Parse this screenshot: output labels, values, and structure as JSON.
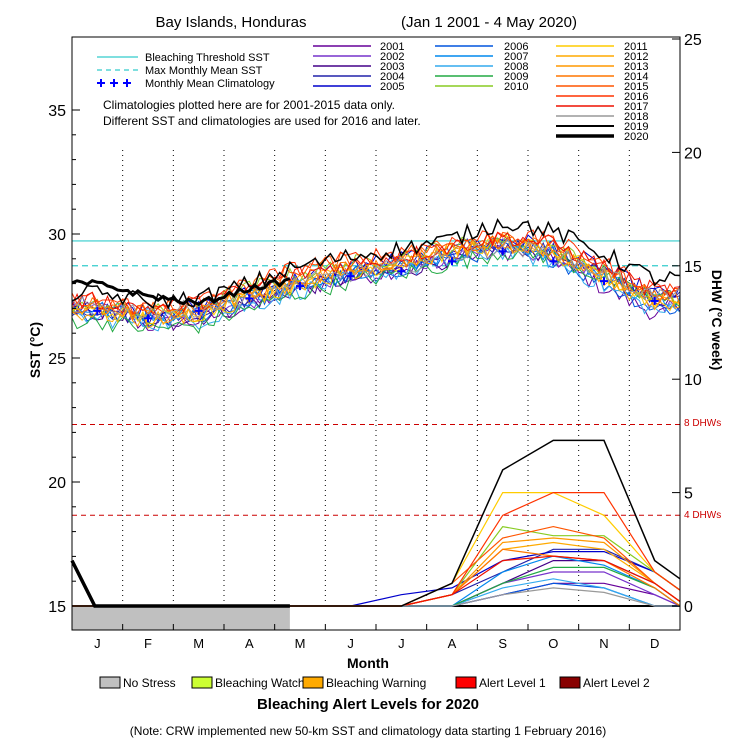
{
  "chart_data": {
    "type": "line",
    "title": "Bay Islands, Honduras",
    "subtitle": "(Jan 1 2001 - 4 May 2020)",
    "xlabel": "Month",
    "ylabel_left": "SST (°C)",
    "ylabel_right": "DHW (°C week)",
    "x_months": [
      "J",
      "F",
      "M",
      "A",
      "M",
      "J",
      "J",
      "A",
      "S",
      "O",
      "N",
      "D"
    ],
    "sst_ylim": [
      15,
      39
    ],
    "sst_ticks": [
      "15",
      "20",
      "25",
      "30",
      "35"
    ],
    "dhw_ylim": [
      0,
      25
    ],
    "dhw_ticks": [
      "0",
      "5",
      "10",
      "15",
      "20",
      "25"
    ],
    "bleaching_threshold_sst": 29.72,
    "max_monthly_mean_sst": 28.72,
    "dhw_thresholds": [
      {
        "value": 8,
        "label": "8 DHWs",
        "color": "#cc0000"
      },
      {
        "value": 4,
        "label": "4 DHWs",
        "color": "#cc0000"
      }
    ],
    "reference_legend": [
      {
        "label": "Bleaching Threshold SST",
        "color": "#33cccc",
        "style": "solid"
      },
      {
        "label": "Max Monthly Mean SST",
        "color": "#33cccc",
        "style": "dashed"
      },
      {
        "label": "Monthly Mean Climatology",
        "color": "#0000ff",
        "style": "plus"
      }
    ],
    "notes": [
      "Climatologies plotted here are for 2001-2015 data only.",
      "Different SST and climatologies are used for 2016 and later."
    ],
    "monthly_mean_climatology": [
      26.9,
      26.6,
      26.9,
      27.4,
      27.9,
      28.3,
      28.5,
      28.9,
      29.3,
      28.9,
      28.1,
      27.3
    ],
    "series": [
      {
        "name": "2001",
        "color": "#660099",
        "sst": [
          26.9,
          26.3,
          26.5,
          27.1,
          27.8,
          28.2,
          28.6,
          29.0,
          29.3,
          29.0,
          27.8,
          26.8
        ],
        "dhw": [
          0,
          0,
          0,
          0,
          0,
          0,
          0,
          0,
          0.5,
          1.0,
          1.0,
          0.5
        ]
      },
      {
        "name": "2002",
        "color": "#7733cc",
        "sst": [
          27.1,
          26.7,
          26.8,
          27.3,
          27.9,
          28.3,
          28.6,
          29.1,
          29.5,
          29.1,
          28.2,
          27.2
        ],
        "dhw": [
          0,
          0,
          0,
          0,
          0,
          0,
          0,
          0,
          1.0,
          1.5,
          1.5,
          0.5
        ]
      },
      {
        "name": "2003",
        "color": "#440088",
        "sst": [
          26.8,
          26.5,
          26.6,
          27.2,
          27.8,
          28.2,
          28.5,
          29.0,
          29.4,
          29.2,
          28.3,
          27.4
        ],
        "dhw": [
          0,
          0,
          0,
          0,
          0,
          0,
          0,
          0,
          1.0,
          2.0,
          2.0,
          1.0
        ]
      },
      {
        "name": "2004",
        "color": "#2222aa",
        "sst": [
          27.0,
          26.6,
          26.8,
          27.4,
          28.0,
          28.4,
          28.7,
          29.2,
          29.6,
          29.3,
          28.4,
          27.5
        ],
        "dhw": [
          0,
          0,
          0,
          0,
          0,
          0,
          0,
          0.5,
          1.5,
          2.5,
          2.5,
          1.5
        ]
      },
      {
        "name": "2005",
        "color": "#0000cc",
        "sst": [
          27.2,
          26.9,
          27.0,
          27.6,
          28.2,
          28.7,
          29.0,
          29.4,
          29.8,
          29.5,
          28.6,
          27.6
        ],
        "dhw": [
          0,
          0,
          0,
          0,
          0,
          0,
          0.5,
          0.8,
          2.0,
          2.4,
          2.4,
          1.5
        ]
      },
      {
        "name": "2006",
        "color": "#0055dd",
        "sst": [
          26.7,
          26.5,
          26.7,
          27.3,
          27.9,
          28.3,
          28.6,
          29.0,
          29.4,
          29.0,
          28.0,
          27.0
        ],
        "dhw": [
          0,
          0,
          0,
          0,
          0,
          0,
          0,
          0,
          0.5,
          1.0,
          0.8,
          0
        ]
      },
      {
        "name": "2007",
        "color": "#0088ee",
        "sst": [
          27.0,
          26.8,
          26.9,
          27.5,
          28.0,
          28.5,
          28.8,
          29.2,
          29.6,
          29.2,
          28.3,
          27.3
        ],
        "dhw": [
          0,
          0,
          0,
          0,
          0,
          0,
          0,
          0,
          1.5,
          2.2,
          1.8,
          0.8
        ]
      },
      {
        "name": "2008",
        "color": "#33aaee",
        "sst": [
          26.6,
          26.4,
          26.5,
          27.1,
          27.7,
          28.2,
          28.5,
          28.9,
          29.3,
          28.9,
          27.9,
          26.9
        ],
        "dhw": [
          0,
          0,
          0,
          0,
          0,
          0,
          0,
          0,
          0.8,
          1.2,
          0.8,
          0
        ]
      },
      {
        "name": "2009",
        "color": "#22aa44",
        "sst": [
          26.5,
          26.2,
          26.3,
          27.0,
          27.6,
          28.1,
          28.4,
          28.8,
          29.3,
          29.1,
          28.2,
          27.3
        ],
        "dhw": [
          0,
          0,
          0,
          0,
          0,
          0,
          0,
          0,
          1.0,
          1.7,
          1.7,
          0.8
        ]
      },
      {
        "name": "2010",
        "color": "#88cc22",
        "sst": [
          27.1,
          26.8,
          27.1,
          27.8,
          28.4,
          28.8,
          29.1,
          29.5,
          29.8,
          29.5,
          28.5,
          27.4
        ],
        "dhw": [
          0,
          0,
          0,
          0,
          0,
          0,
          0,
          0.5,
          3.5,
          3.1,
          3.1,
          1.5
        ]
      },
      {
        "name": "2011",
        "color": "#ffcc00",
        "sst": [
          26.9,
          26.6,
          26.8,
          27.4,
          28.0,
          28.5,
          28.8,
          29.3,
          29.7,
          29.3,
          28.3,
          27.2
        ],
        "dhw": [
          0,
          0,
          0,
          0,
          0,
          0,
          0,
          1.0,
          5.0,
          5.0,
          4.0,
          1.5
        ]
      },
      {
        "name": "2012",
        "color": "#ffaa00",
        "sst": [
          26.8,
          26.5,
          26.8,
          27.5,
          28.1,
          28.5,
          28.8,
          29.2,
          29.6,
          29.2,
          28.2,
          27.1
        ],
        "dhw": [
          0,
          0,
          0,
          0,
          0,
          0,
          0,
          0.5,
          2.5,
          2.8,
          2.5,
          1.0
        ]
      },
      {
        "name": "2013",
        "color": "#ff9900",
        "sst": [
          27.0,
          26.7,
          26.9,
          27.5,
          28.1,
          28.6,
          28.9,
          29.3,
          29.7,
          29.3,
          28.3,
          27.3
        ],
        "dhw": [
          0,
          0,
          0,
          0,
          0,
          0,
          0,
          0.5,
          2.8,
          3.0,
          2.8,
          1.0
        ]
      },
      {
        "name": "2014",
        "color": "#ff7700",
        "sst": [
          27.1,
          26.8,
          27.0,
          27.6,
          28.2,
          28.6,
          28.9,
          29.4,
          29.8,
          29.4,
          28.4,
          27.4
        ],
        "dhw": [
          0,
          0,
          0,
          0,
          0,
          0,
          0,
          0.5,
          2.5,
          2.2,
          2.0,
          0.8
        ]
      },
      {
        "name": "2015",
        "color": "#ff5500",
        "sst": [
          27.2,
          26.9,
          27.2,
          27.9,
          28.6,
          29.0,
          29.2,
          29.6,
          30.0,
          29.6,
          28.6,
          27.5
        ],
        "dhw": [
          0,
          0,
          0,
          0,
          0,
          0,
          0,
          1.0,
          3.0,
          3.5,
          3.0,
          1.0
        ]
      },
      {
        "name": "2016",
        "color": "#ff3300",
        "sst": [
          27.4,
          27.0,
          27.3,
          28.0,
          28.7,
          29.0,
          29.3,
          29.7,
          30.0,
          29.7,
          28.8,
          27.8
        ],
        "dhw": [
          0,
          0,
          0,
          0,
          0,
          0,
          0,
          0.5,
          4.0,
          5.0,
          5.0,
          1.5
        ]
      },
      {
        "name": "2017",
        "color": "#ee1100",
        "sst": [
          27.3,
          27.0,
          27.2,
          27.8,
          28.4,
          28.8,
          29.1,
          29.5,
          29.9,
          29.6,
          28.7,
          27.7
        ],
        "dhw": [
          0,
          0,
          0,
          0,
          0,
          0,
          0,
          0.5,
          2.0,
          2.2,
          2.0,
          1.0
        ]
      },
      {
        "name": "2018",
        "color": "#999999",
        "sst": [
          27.1,
          26.9,
          27.0,
          27.5,
          28.0,
          28.4,
          28.7,
          29.1,
          29.5,
          29.2,
          28.4,
          27.5
        ],
        "dhw": [
          0,
          0,
          0,
          0,
          0,
          0,
          0,
          0,
          0.5,
          0.8,
          0.6,
          0
        ]
      },
      {
        "name": "2019",
        "color": "#000000",
        "sst": [
          27.6,
          27.3,
          27.4,
          28.0,
          28.7,
          29.1,
          29.4,
          29.8,
          30.5,
          30.1,
          29.2,
          28.2
        ],
        "dhw": [
          0,
          0,
          0,
          0,
          0,
          0,
          0,
          1.0,
          6.0,
          7.3,
          7.3,
          2.0
        ]
      },
      {
        "name": "2020",
        "color": "#000000",
        "sst": [
          28.0,
          27.5,
          27.2,
          27.8,
          28.2
        ],
        "dhw": [
          2.0,
          0,
          0,
          0,
          0
        ]
      }
    ],
    "alert_levels_title": "Bleaching Alert Levels for 2020",
    "alert_levels": [
      {
        "label": "No Stress",
        "color": "#c0c0c0"
      },
      {
        "label": "Bleaching Watch",
        "color": "#ccff33"
      },
      {
        "label": "Bleaching Warning",
        "color": "#ffaa00"
      },
      {
        "label": "Alert Level 1",
        "color": "#ff0000"
      },
      {
        "label": "Alert Level 2",
        "color": "#880000"
      }
    ],
    "alert_bar_2020": {
      "level": "No Stress",
      "end_month": 4.3
    },
    "note": "(Note: CRW implemented new 50-km SST and climatology data starting 1 February 2016)"
  }
}
